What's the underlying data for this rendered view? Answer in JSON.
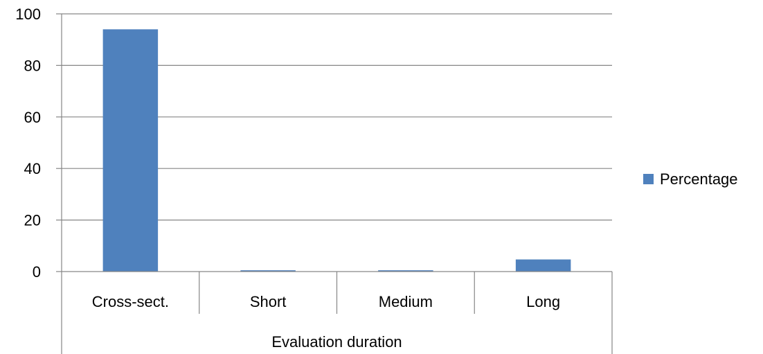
{
  "chart_data": {
    "type": "bar",
    "categories": [
      "Cross-sect.",
      "Short",
      "Medium",
      "Long"
    ],
    "series": [
      {
        "name": "Percentage",
        "values": [
          94,
          0.5,
          0.5,
          4.7
        ]
      }
    ],
    "group_label": "Evaluation duration",
    "ylim": [
      0,
      100
    ],
    "yticks": [
      0,
      20,
      40,
      60,
      80,
      100
    ],
    "grid": true,
    "legend_position": "right",
    "colors": {
      "bar": "#4f81bd",
      "grid": "#868686",
      "axis": "#868686"
    }
  }
}
